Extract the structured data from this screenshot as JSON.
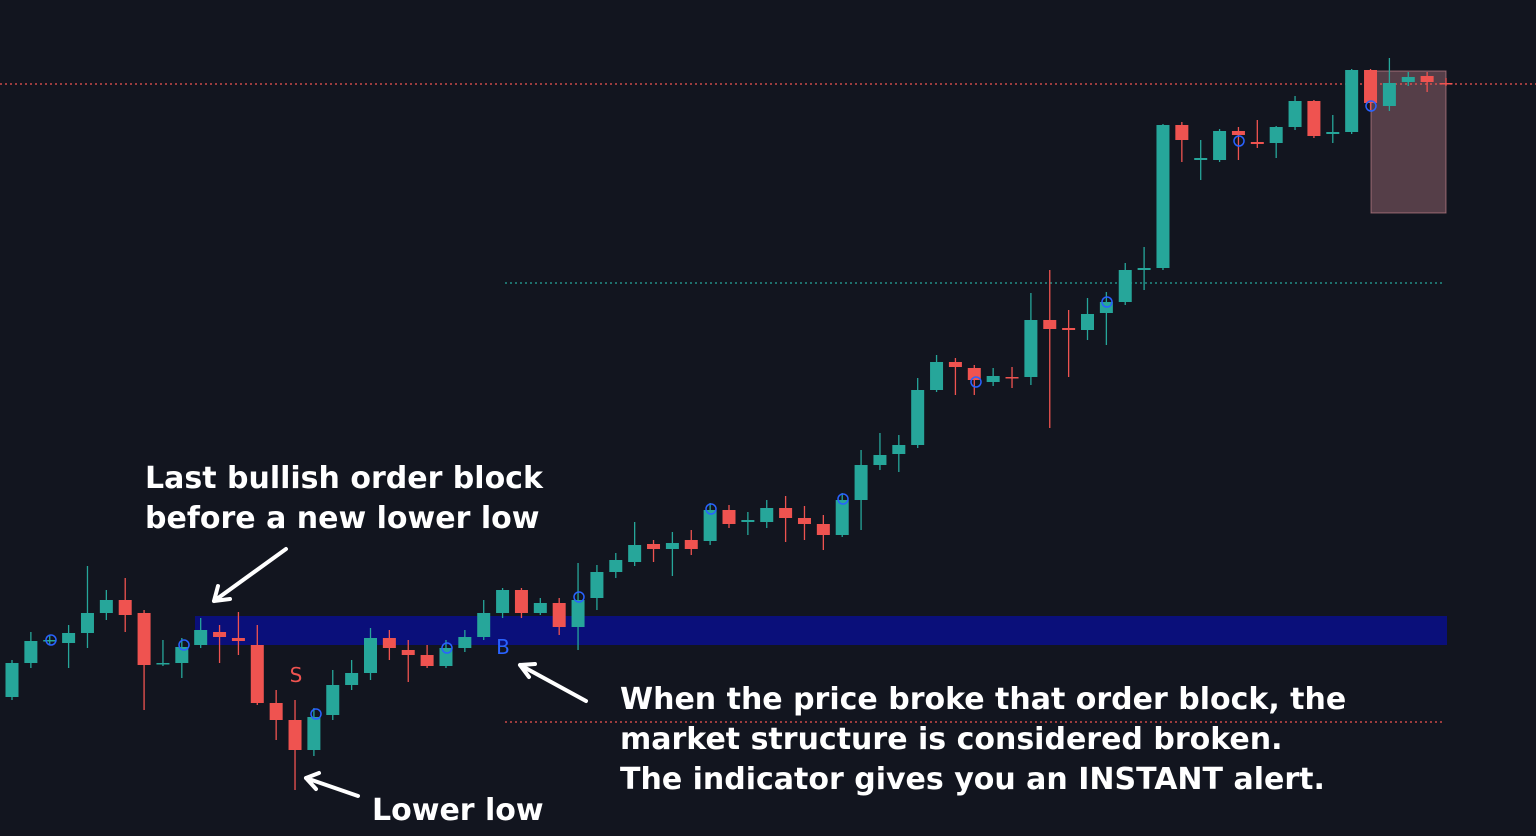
{
  "chart_data": {
    "type": "candlestick",
    "ylim": [
      0,
      836
    ],
    "up_color": "#26a69a",
    "down_color": "#ef5350",
    "series": [
      {
        "open": [
          139,
          173,
          195,
          193,
          203,
          223,
          236,
          223,
          172,
          173,
          191,
          204,
          198,
          191,
          133,
          116,
          86,
          121,
          151,
          163,
          198,
          186,
          181,
          170,
          188,
          199,
          223,
          246,
          223,
          233,
          209,
          238,
          264,
          274,
          292,
          287,
          296,
          295,
          326,
          314,
          314,
          328,
          318,
          312,
          301,
          336,
          371,
          382,
          391,
          446,
          474,
          468,
          454,
          459,
          459,
          516,
          508,
          506,
          523,
          534,
          566,
          568,
          711,
          676,
          676,
          705,
          694,
          693,
          709,
          735,
          702,
          704,
          766,
          730,
          754,
          760,
          753
        ],
        "high": [
          176,
          204,
          201,
          211,
          270,
          246,
          258,
          226,
          196,
          198,
          218,
          211,
          224,
          211,
          146,
          136,
          128,
          166,
          176,
          208,
          206,
          196,
          191,
          196,
          206,
          236,
          248,
          248,
          238,
          238,
          273,
          271,
          283,
          314,
          296,
          304,
          306,
          333,
          331,
          324,
          336,
          340,
          330,
          321,
          343,
          386,
          403,
          401,
          458,
          481,
          478,
          471,
          468,
          469,
          543,
          566,
          526,
          538,
          544,
          573,
          589,
          712,
          714,
          696,
          707,
          709,
          716,
          710,
          740,
          736,
          721,
          767,
          767,
          778,
          764,
          764,
          758
        ],
        "low": [
          136,
          168,
          191,
          168,
          188,
          216,
          204,
          126,
          170,
          158,
          188,
          173,
          181,
          131,
          96,
          46,
          80,
          116,
          146,
          156,
          176,
          154,
          168,
          168,
          184,
          196,
          218,
          218,
          221,
          201,
          186,
          226,
          258,
          270,
          274,
          260,
          281,
          291,
          308,
          301,
          308,
          294,
          296,
          286,
          299,
          306,
          366,
          364,
          388,
          444,
          441,
          441,
          450,
          448,
          451,
          408,
          459,
          496,
          491,
          531,
          546,
          566,
          674,
          656,
          674,
          676,
          688,
          678,
          706,
          698,
          693,
          702,
          726,
          725,
          750,
          744,
          750
        ],
        "close": [
          173,
          195,
          196,
          203,
          223,
          236,
          221,
          171,
          173,
          189,
          206,
          199,
          195,
          133,
          116,
          86,
          119,
          151,
          163,
          198,
          188,
          181,
          170,
          188,
          199,
          223,
          246,
          223,
          233,
          209,
          236,
          264,
          276,
          291,
          287,
          293,
          287,
          326,
          312,
          316,
          328,
          318,
          312,
          301,
          336,
          371,
          381,
          391,
          446,
          474,
          469,
          456,
          460,
          458,
          516,
          507,
          506,
          522,
          534,
          566,
          568,
          711,
          696,
          678,
          705,
          701,
          692,
          709,
          735,
          700,
          704,
          766,
          733,
          753,
          759,
          754,
          752
        ]
      }
    ],
    "order_block": {
      "low": 191,
      "high": 220,
      "color": "#0a0f7a"
    },
    "hlines": [
      {
        "value": 752,
        "color": "#ef5350"
      },
      {
        "value": 553,
        "color": "#26a69a"
      },
      {
        "value": 114,
        "color": "#ef5350"
      }
    ],
    "target_box": {
      "low": 623,
      "high": 765,
      "color": "#f2a0a8"
    },
    "signals": [
      {
        "label": "S",
        "color": "#ef5350"
      },
      {
        "label": "B",
        "color": "#2962ff"
      }
    ],
    "annotations": [
      {
        "lines": [
          "Last bullish order block",
          "before a new lower low"
        ]
      },
      {
        "lines": [
          "When the price broke that order block, the",
          "market structure is considered broken.",
          "The indicator gives you an INSTANT alert."
        ]
      },
      {
        "lines": [
          "Lower low"
        ]
      }
    ]
  }
}
